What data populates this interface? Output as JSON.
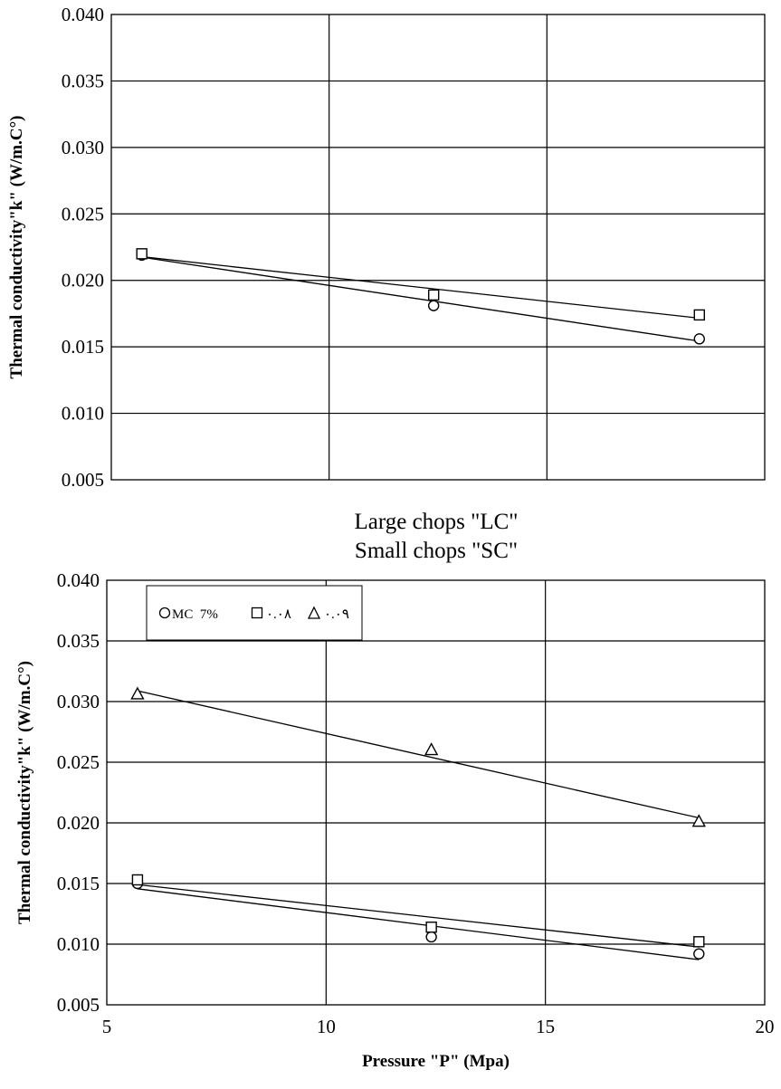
{
  "captions": [
    "Large chops \"LC\"",
    "Small chops \"SC\""
  ],
  "legend": {
    "items": [
      {
        "marker": "circle",
        "label": "MC  7%"
      },
      {
        "marker": "square",
        "label": "٠.٠٨"
      },
      {
        "marker": "triangle",
        "label": "٠.٠٩"
      }
    ]
  },
  "chart_data": [
    {
      "type": "scatter",
      "title": "",
      "xlabel": "",
      "ylabel": "Thermal conductivity\"k\" (W/m.C°)",
      "xlim": [
        5,
        20
      ],
      "ylim": [
        0.005,
        0.04
      ],
      "x_ticks": [
        5,
        10,
        15,
        20
      ],
      "y_ticks": [
        "0.005",
        "0.010",
        "0.015",
        "0.020",
        "0.025",
        "0.030",
        "0.035",
        "0.040"
      ],
      "grid": true,
      "trendlines": true,
      "series": [
        {
          "marker": "circle",
          "x": [
            5.7,
            12.4,
            18.5
          ],
          "y": [
            0.0219,
            0.0181,
            0.0156
          ]
        },
        {
          "marker": "square",
          "x": [
            5.7,
            12.4,
            18.5
          ],
          "y": [
            0.022,
            0.0189,
            0.0174
          ]
        }
      ]
    },
    {
      "type": "scatter",
      "title": "",
      "xlabel": "Pressure \"P\" (Mpa)",
      "ylabel": "Thermal conductivity\"k\" (W/m.C°)",
      "xlim": [
        5,
        20
      ],
      "ylim": [
        0.005,
        0.04
      ],
      "x_ticks": [
        "5",
        "10",
        "15",
        "20"
      ],
      "y_ticks": [
        "0.005",
        "0.010",
        "0.015",
        "0.020",
        "0.025",
        "0.030",
        "0.035",
        "0.040"
      ],
      "grid": true,
      "trendlines": true,
      "series": [
        {
          "marker": "circle",
          "x": [
            5.7,
            12.4,
            18.5
          ],
          "y": [
            0.015,
            0.0106,
            0.0092
          ]
        },
        {
          "marker": "square",
          "x": [
            5.7,
            12.4,
            18.5
          ],
          "y": [
            0.0153,
            0.0114,
            0.0102
          ]
        },
        {
          "marker": "triangle",
          "x": [
            5.7,
            12.4,
            18.5
          ],
          "y": [
            0.0306,
            0.026,
            0.0201
          ]
        }
      ]
    }
  ]
}
